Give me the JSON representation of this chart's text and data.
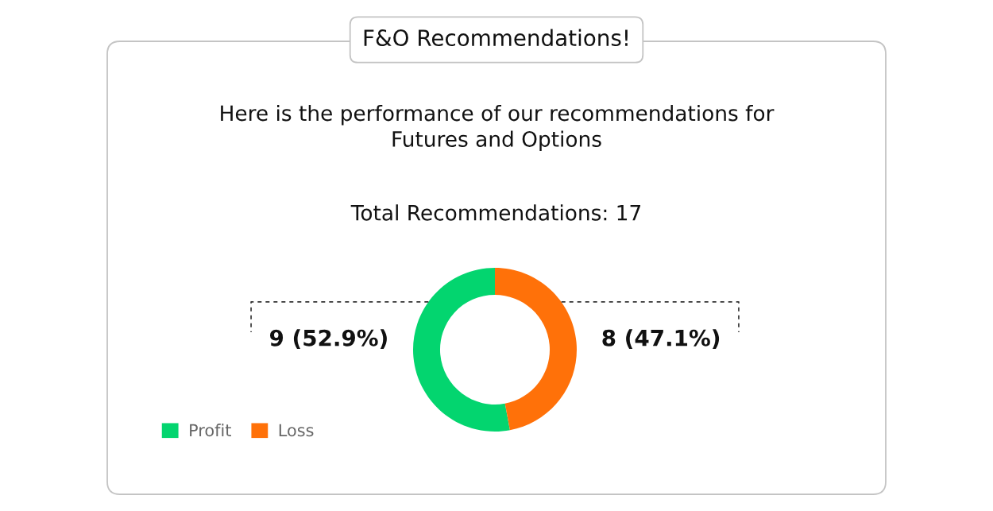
{
  "chart_data": {
    "type": "donut",
    "title": "F&O Recommendations!",
    "subtitle": "Here is the performance of our recommendations for\nFutures and Options",
    "annotations": [
      "Total Recommendations: 17"
    ],
    "categories": [
      "Profit",
      "Loss"
    ],
    "values": [
      9,
      8
    ],
    "colors": [
      "#03d56f",
      "#ff7109"
    ],
    "value_labels": [
      "9 (52.9%)",
      "8 (47.1%)"
    ],
    "legend": "bottom left"
  }
}
